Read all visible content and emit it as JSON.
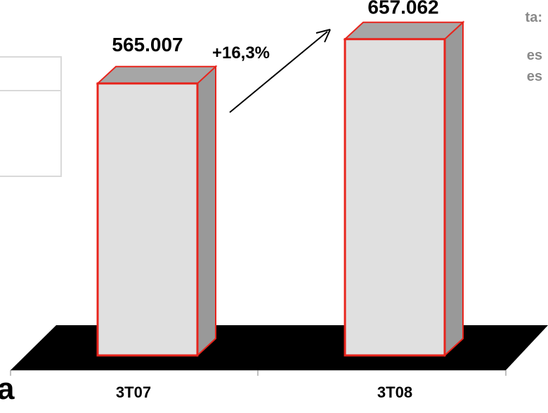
{
  "side_panel": {
    "heading": "ta:",
    "lines": [
      "es",
      "es"
    ]
  },
  "corner_text": "a",
  "chart_data": {
    "type": "bar",
    "categories": [
      "3T07",
      "3T08"
    ],
    "values": [
      565007,
      657062
    ],
    "value_labels": [
      "565.007",
      "657.062"
    ],
    "annotation": "+16,3%",
    "ylim": [
      0,
      680000
    ],
    "grid": false,
    "style": "3d",
    "colors": {
      "bar_face": "#e0e0e0",
      "bar_side": "#999999",
      "bar_top": "#a6a6a6",
      "bar_outline": "#e8241c",
      "floor": "#000000"
    }
  }
}
